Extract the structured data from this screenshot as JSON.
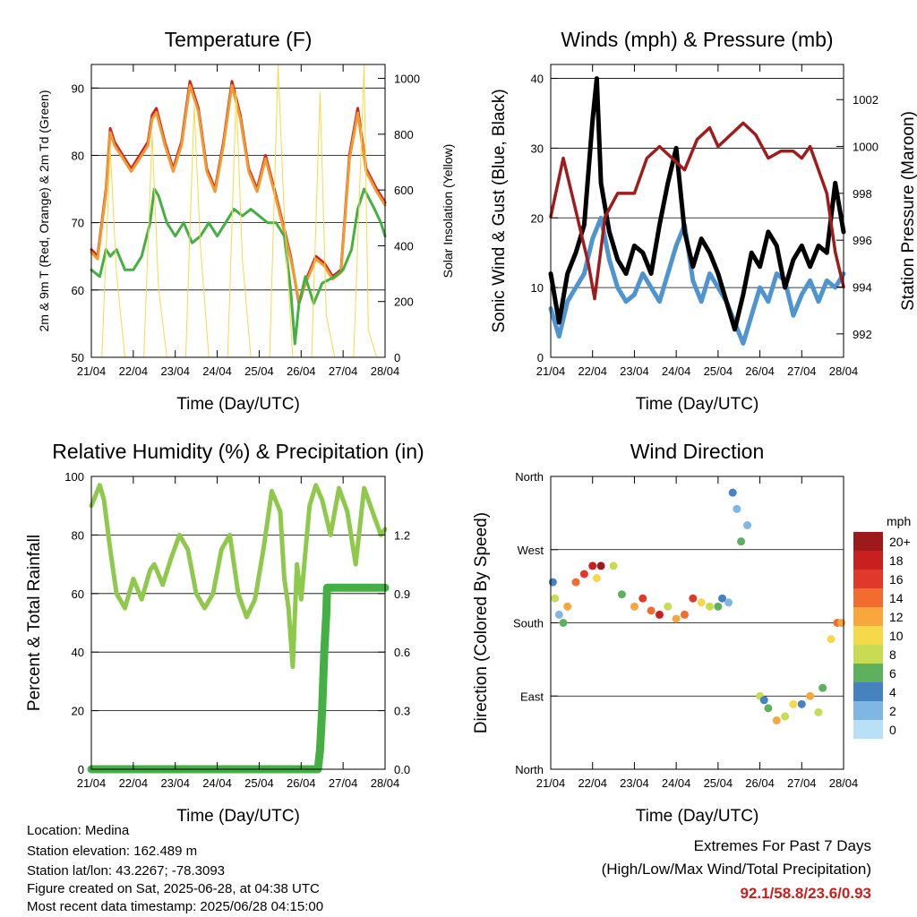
{
  "chart_data": [
    {
      "id": "temperature",
      "type": "line",
      "title": "Temperature (F)",
      "xlabel": "Time (Day/UTC)",
      "ylabel": "2m & 9m T (Red, Orange) & 2m Td (Green)",
      "ylabel_right": "Solar Insolation (Yellow)",
      "x_ticks": [
        "21/04",
        "22/04",
        "23/04",
        "24/04",
        "25/04",
        "26/04",
        "27/04",
        "28/04"
      ],
      "ylim": [
        50,
        93.5
      ],
      "y_ticks": [
        50,
        60,
        70,
        80,
        90
      ],
      "ylim_right": [
        0,
        1050
      ],
      "y_ticks_right": [
        0,
        200,
        400,
        600,
        800,
        1000
      ],
      "grid": true,
      "x_unit": "days since 21/04 00 UTC",
      "series": [
        {
          "name": "2m T",
          "axis": "left",
          "color": "#cc2222",
          "x": [
            0,
            0.15,
            0.35,
            0.45,
            0.55,
            0.75,
            0.95,
            1.15,
            1.35,
            1.45,
            1.55,
            1.75,
            1.95,
            2.15,
            2.35,
            2.55,
            2.75,
            2.95,
            3.15,
            3.35,
            3.55,
            3.75,
            3.95,
            4.15,
            4.4,
            4.6,
            4.75,
            4.95,
            5.15,
            5.35,
            5.55,
            5.75,
            5.95,
            6.15,
            6.35,
            6.55,
            6.8,
            7.0
          ],
          "y": [
            66,
            65,
            75,
            84,
            82,
            80,
            78,
            80,
            82,
            86,
            87,
            82,
            78,
            82,
            91,
            87,
            78,
            75,
            82,
            91,
            86,
            78,
            75,
            80,
            74,
            69,
            65,
            58,
            62,
            65,
            64,
            62,
            63,
            80,
            87,
            78,
            75,
            73
          ]
        },
        {
          "name": "9m T",
          "axis": "left",
          "color": "#f29a2e",
          "x": [
            0,
            0.15,
            0.35,
            0.45,
            0.55,
            0.75,
            0.95,
            1.15,
            1.35,
            1.45,
            1.55,
            1.75,
            1.95,
            2.15,
            2.35,
            2.55,
            2.75,
            2.95,
            3.15,
            3.35,
            3.55,
            3.75,
            3.95,
            4.15,
            4.4,
            4.6,
            4.75,
            4.95,
            5.15,
            5.35,
            5.55,
            5.75,
            5.95,
            6.15,
            6.35,
            6.55,
            6.8,
            7.0
          ],
          "y": [
            65.6,
            64.6,
            74.5,
            83.4,
            81.5,
            79.6,
            77.6,
            79.5,
            81.5,
            85.4,
            86.4,
            81.6,
            77.6,
            81.5,
            90.4,
            86.5,
            77.6,
            74.6,
            81.5,
            90.4,
            85.5,
            77.6,
            74.6,
            79.5,
            73.6,
            68.6,
            64.6,
            58.4,
            61.6,
            64.6,
            63.6,
            61.6,
            62.6,
            79.4,
            86.3,
            77.6,
            74.6,
            72.6
          ]
        },
        {
          "name": "2m Td",
          "axis": "left",
          "color": "#44b044",
          "x": [
            0,
            0.2,
            0.35,
            0.45,
            0.6,
            0.8,
            1.0,
            1.2,
            1.4,
            1.5,
            1.6,
            1.8,
            2.0,
            2.2,
            2.4,
            2.6,
            2.8,
            3.0,
            3.2,
            3.4,
            3.6,
            3.8,
            4.0,
            4.2,
            4.4,
            4.6,
            4.75,
            4.85,
            4.95,
            5.1,
            5.3,
            5.5,
            5.8,
            6.0,
            6.2,
            6.35,
            6.5,
            6.75,
            6.9,
            7.0
          ],
          "y": [
            63,
            62,
            66,
            65,
            66,
            63,
            63,
            65,
            70,
            75,
            74,
            70,
            68,
            70,
            67,
            68,
            70,
            68,
            70,
            72,
            71,
            72,
            71,
            70,
            70,
            68,
            60,
            52,
            58,
            62,
            58,
            61,
            62,
            63,
            66,
            72,
            75,
            72,
            70,
            68
          ]
        },
        {
          "name": "Solar Insolation",
          "axis": "right",
          "color": "#f5d94a",
          "x": [
            0,
            0.25,
            0.45,
            0.6,
            0.8,
            1.0,
            1.25,
            1.45,
            1.6,
            1.8,
            2.0,
            2.25,
            2.45,
            2.6,
            2.8,
            3.0,
            3.25,
            3.45,
            3.6,
            3.8,
            4.0,
            4.25,
            4.45,
            4.6,
            4.8,
            5.0,
            5.25,
            5.45,
            5.6,
            5.8,
            6.0,
            6.25,
            6.5,
            6.6,
            6.8,
            7.0
          ],
          "y": [
            0,
            0,
            750,
            300,
            0,
            0,
            0,
            800,
            250,
            0,
            0,
            0,
            900,
            400,
            0,
            0,
            0,
            950,
            350,
            0,
            0,
            0,
            1050,
            500,
            0,
            0,
            0,
            950,
            150,
            0,
            0,
            0,
            1050,
            100,
            0,
            0
          ]
        }
      ]
    },
    {
      "id": "winds",
      "type": "line",
      "title": "Winds (mph) & Pressure (mb)",
      "xlabel": "Time (Day/UTC)",
      "ylabel": "Sonic Wind & Gust (Blue, Black)",
      "ylabel_right": "Station Pressure (Maroon)",
      "x_ticks": [
        "21/04",
        "22/04",
        "23/04",
        "24/04",
        "25/04",
        "26/04",
        "27/04",
        "28/04"
      ],
      "ylim": [
        0,
        42
      ],
      "y_ticks": [
        0,
        10,
        20,
        30,
        40
      ],
      "ylim_right": [
        991,
        1003.5
      ],
      "y_ticks_right": [
        992,
        994,
        996,
        998,
        1000,
        1002
      ],
      "grid": true,
      "x_unit": "days since 21/04 00 UTC",
      "series": [
        {
          "name": "Sonic Wind",
          "axis": "left",
          "color": "#4d94d0",
          "x": [
            0,
            0.2,
            0.4,
            0.6,
            0.8,
            1.0,
            1.2,
            1.4,
            1.6,
            1.8,
            2.0,
            2.2,
            2.4,
            2.6,
            2.8,
            3.0,
            3.2,
            3.4,
            3.6,
            3.8,
            4.0,
            4.2,
            4.4,
            4.6,
            4.8,
            5.0,
            5.2,
            5.4,
            5.6,
            5.8,
            6.0,
            6.2,
            6.4,
            6.6,
            6.8,
            7.0
          ],
          "y": [
            7,
            3,
            8,
            10,
            12,
            17,
            20,
            14,
            10,
            8,
            9,
            12,
            10,
            8,
            12,
            16,
            19,
            11,
            8,
            12,
            10,
            8,
            5,
            2,
            6,
            10,
            8,
            12,
            11,
            6,
            9,
            11,
            8,
            11,
            10,
            12
          ]
        },
        {
          "name": "Gust",
          "axis": "left",
          "color": "#000000",
          "x": [
            0,
            0.2,
            0.4,
            0.6,
            0.8,
            1.0,
            1.1,
            1.2,
            1.4,
            1.6,
            1.8,
            2.0,
            2.2,
            2.4,
            2.6,
            2.8,
            3.0,
            3.2,
            3.4,
            3.6,
            3.8,
            4.0,
            4.2,
            4.4,
            4.6,
            4.8,
            5.0,
            5.2,
            5.4,
            5.6,
            5.8,
            6.0,
            6.2,
            6.4,
            6.6,
            6.8,
            7.0
          ],
          "y": [
            12,
            5,
            12,
            15,
            19,
            34,
            40,
            25,
            18,
            14,
            12,
            16,
            15,
            12,
            19,
            25,
            30,
            18,
            13,
            17,
            15,
            12,
            8,
            4,
            9,
            15,
            13,
            18,
            16,
            10,
            14,
            16,
            13,
            16,
            15,
            25,
            18
          ]
        },
        {
          "name": "Station Pressure",
          "axis": "right",
          "color": "#a01c1c",
          "x": [
            0,
            0.3,
            0.5,
            0.7,
            0.9,
            1.05,
            1.3,
            1.6,
            2.0,
            2.3,
            2.6,
            2.9,
            3.2,
            3.5,
            3.8,
            4.0,
            4.3,
            4.6,
            4.9,
            5.2,
            5.5,
            5.8,
            6.0,
            6.2,
            6.4,
            6.6,
            6.8,
            7.0
          ],
          "y": [
            997,
            999.5,
            998,
            996.5,
            995,
            993.5,
            997,
            998,
            998,
            999.5,
            1000,
            999.5,
            999,
            1000.3,
            1000.8,
            1000,
            1000.5,
            1001,
            1000.5,
            999.5,
            999.8,
            999.8,
            999.5,
            1000,
            999,
            998,
            995.5,
            994
          ]
        }
      ]
    },
    {
      "id": "humidity",
      "type": "line",
      "title": "Relative Humidity (%) & Precipitation (in)",
      "xlabel": "Time (Day/UTC)",
      "ylabel": "Percent & Total Rainfall",
      "x_ticks": [
        "21/04",
        "22/04",
        "23/04",
        "24/04",
        "25/04",
        "26/04",
        "27/04",
        "28/04"
      ],
      "ylim": [
        0,
        100
      ],
      "y_ticks": [
        0,
        20,
        40,
        60,
        80,
        100
      ],
      "ylim_right": [
        0,
        1.5
      ],
      "y_ticks_right": [
        "0.0",
        "0.3",
        "0.6",
        "0.9",
        "1.2"
      ],
      "y_ticks_right_values": [
        0,
        0.3,
        0.6,
        0.9,
        1.2
      ],
      "grid": true,
      "x_unit": "days since 21/04 00 UTC",
      "series": [
        {
          "name": "Relative Humidity",
          "axis": "left",
          "color": "#8ec94b",
          "x": [
            0,
            0.2,
            0.3,
            0.45,
            0.6,
            0.8,
            1.0,
            1.2,
            1.4,
            1.5,
            1.7,
            1.9,
            2.1,
            2.3,
            2.5,
            2.7,
            2.9,
            3.1,
            3.3,
            3.5,
            3.7,
            3.9,
            4.1,
            4.3,
            4.5,
            4.6,
            4.7,
            4.8,
            4.9,
            5.0,
            5.2,
            5.35,
            5.5,
            5.7,
            5.9,
            6.1,
            6.3,
            6.5,
            6.7,
            6.9,
            7.0
          ],
          "y": [
            90,
            97,
            92,
            75,
            60,
            55,
            65,
            58,
            68,
            70,
            63,
            72,
            80,
            75,
            60,
            55,
            60,
            75,
            80,
            60,
            52,
            58,
            75,
            95,
            88,
            65,
            55,
            35,
            70,
            58,
            90,
            97,
            92,
            80,
            96,
            88,
            70,
            96,
            88,
            80,
            82
          ]
        },
        {
          "name": "Total Rainfall",
          "axis": "right",
          "color": "#44b044",
          "x": [
            0,
            5.4,
            5.45,
            5.5,
            5.55,
            5.6,
            5.62,
            7.0
          ],
          "y": [
            0,
            0,
            0.1,
            0.3,
            0.6,
            0.8,
            0.93,
            0.93
          ]
        }
      ]
    },
    {
      "id": "wind-direction",
      "type": "scatter",
      "title": "Wind Direction",
      "xlabel": "Time (Day/UTC)",
      "ylabel": "Direction (Colored By Speed)",
      "x_ticks": [
        "21/04",
        "22/04",
        "23/04",
        "24/04",
        "25/04",
        "26/04",
        "27/04",
        "28/04"
      ],
      "y_ticks": [
        "North",
        "East",
        "South",
        "West",
        "North"
      ],
      "y_ticks_values": [
        0,
        90,
        180,
        270,
        360
      ],
      "ylim": [
        0,
        360
      ],
      "grid": true,
      "x_unit": "days since 21/04 00 UTC",
      "colorbar_title": "mph",
      "colorbar_labels": [
        "20+",
        "18",
        "16",
        "14",
        "12",
        "10",
        "8",
        "6",
        "4",
        "2",
        "0"
      ],
      "colorbar_colors": [
        "#9e1a1a",
        "#c8201f",
        "#e0382a",
        "#f26b2f",
        "#f9a63c",
        "#f5d94a",
        "#c7dc52",
        "#5fb05e",
        "#4682c0",
        "#7fb6e2",
        "#b9e0f7"
      ],
      "points": {
        "x": [
          0.05,
          0.1,
          0.2,
          0.3,
          0.4,
          0.6,
          0.8,
          1.0,
          1.1,
          1.2,
          1.5,
          1.7,
          2.0,
          2.2,
          2.4,
          2.6,
          2.8,
          3.0,
          3.2,
          3.4,
          3.6,
          3.8,
          4.0,
          4.1,
          4.25,
          4.35,
          4.45,
          4.55,
          4.7,
          5.0,
          5.1,
          5.2,
          5.4,
          5.6,
          5.8,
          6.0,
          6.2,
          6.4,
          6.5,
          6.7,
          6.85,
          6.95
        ],
        "y": [
          230,
          210,
          190,
          180,
          200,
          230,
          240,
          250,
          235,
          250,
          250,
          215,
          200,
          210,
          195,
          190,
          200,
          185,
          190,
          210,
          205,
          200,
          200,
          210,
          205,
          340,
          320,
          280,
          300,
          90,
          85,
          75,
          60,
          65,
          80,
          80,
          90,
          70,
          100,
          160,
          180,
          180
        ],
        "speed": [
          4,
          8,
          3,
          6,
          12,
          14,
          16,
          18,
          10,
          20,
          8,
          6,
          12,
          16,
          14,
          18,
          8,
          12,
          14,
          16,
          10,
          8,
          6,
          4,
          3,
          4,
          3,
          6,
          2,
          8,
          4,
          6,
          12,
          8,
          10,
          4,
          12,
          8,
          6,
          10,
          14,
          12
        ]
      }
    }
  ],
  "footer": {
    "location": "Location: Medina",
    "elevation": "Station elevation: 162.489 m",
    "latlon": "Station lat/lon: 43.2267; -78.3093",
    "created": "Figure created on Sat, 2025-06-28, at 04:38 UTC",
    "recent": "Most recent data timestamp: 2025/06/28 04:15:00"
  },
  "extremes": {
    "title": "Extremes For Past 7 Days",
    "subtitle": "(High/Low/Max Wind/Total Precipitation)",
    "values": "92.1/58.8/23.6/0.93",
    "color": "#c8201f"
  }
}
